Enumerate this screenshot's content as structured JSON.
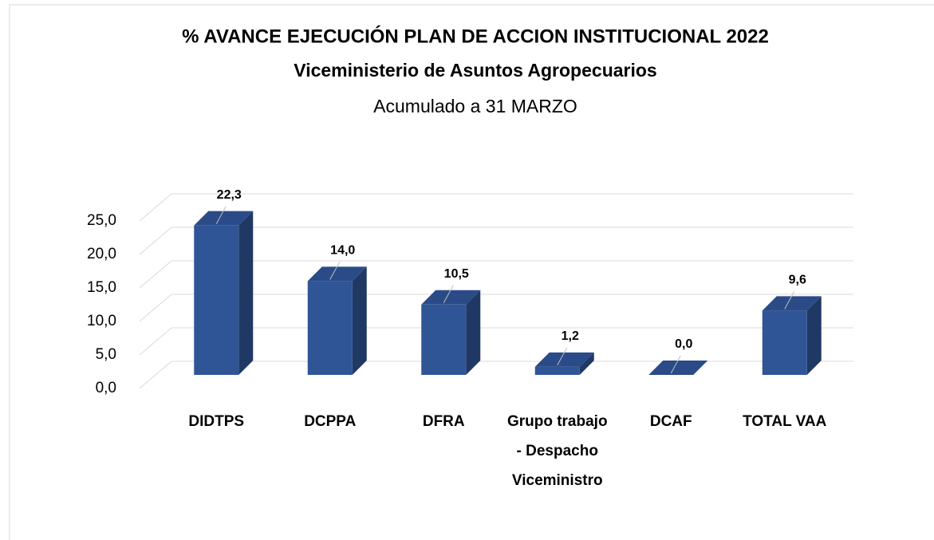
{
  "chart_data": {
    "type": "bar3d",
    "title": "% AVANCE EJECUCIÓN PLAN DE ACCION INSTITUCIONAL 2022",
    "subtitle": "Viceministerio de Asuntos Agropecuarios",
    "note": "Acumulado a 31 MARZO",
    "categories": [
      "DIDTPS",
      "DCPPA",
      "DFRA",
      "Grupo trabajo - Despacho Viceministro",
      "DCAF",
      "TOTAL VAA"
    ],
    "values": [
      22.3,
      14.0,
      10.5,
      1.2,
      0.0,
      9.6
    ],
    "value_labels": [
      "22,3",
      "14,0",
      "10,5",
      "1,2",
      "0,0",
      "9,6"
    ],
    "color": "#2f5597",
    "ylim": [
      0,
      25
    ],
    "yticks": [
      {
        "value": 0,
        "label": "0,0"
      },
      {
        "value": 5,
        "label": "5,0"
      },
      {
        "value": 10,
        "label": "10,0"
      },
      {
        "value": 15,
        "label": "15,0"
      },
      {
        "value": 20,
        "label": "20,0"
      },
      {
        "value": 25,
        "label": "25,0"
      }
    ],
    "grid": true
  }
}
